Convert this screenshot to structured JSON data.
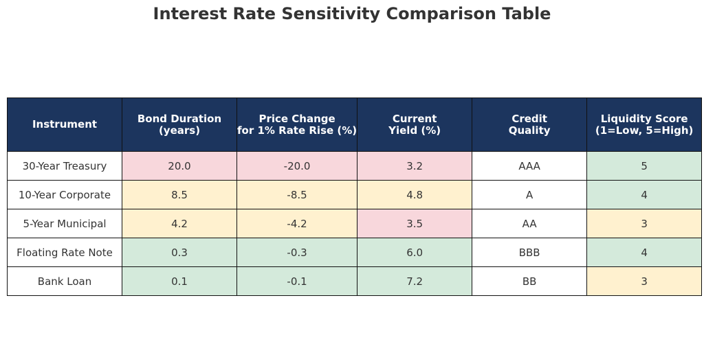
{
  "chart_data": {
    "type": "table",
    "title": "Interest Rate Sensitivity Comparison Table",
    "columns": [
      "Instrument",
      "Bond Duration\n(years)",
      "Price Change\nfor 1% Rate Rise (%)",
      "Current\nYield (%)",
      "Credit\nQuality",
      "Liquidity Score\n(1=Low, 5=High)"
    ],
    "rows": [
      [
        "30-Year Treasury",
        "20.0",
        "-20.0",
        "3.2",
        "AAA",
        "5"
      ],
      [
        "10-Year Corporate",
        "8.5",
        "-8.5",
        "4.8",
        "A",
        "4"
      ],
      [
        "5-Year Municipal",
        "4.2",
        "-4.2",
        "3.5",
        "AA",
        "3"
      ],
      [
        "Floating Rate Note",
        "0.3",
        "-0.3",
        "6.0",
        "BBB",
        "4"
      ],
      [
        "Bank Loan",
        "0.1",
        "-0.1",
        "7.2",
        "BB",
        "3"
      ]
    ],
    "cell_colors": [
      [
        "white",
        "red",
        "red",
        "red",
        "white",
        "green"
      ],
      [
        "white",
        "yellow",
        "yellow",
        "yellow",
        "white",
        "green"
      ],
      [
        "white",
        "yellow",
        "yellow",
        "red",
        "white",
        "yellow"
      ],
      [
        "white",
        "green",
        "green",
        "green",
        "white",
        "green"
      ],
      [
        "white",
        "green",
        "green",
        "green",
        "white",
        "yellow"
      ]
    ]
  },
  "colors": {
    "header_bg": "#1c355e",
    "header_text": "#ffffff",
    "red": "#f8d7dc",
    "yellow": "#fff1cf",
    "green": "#d4eadb",
    "white": "#ffffff",
    "title_text": "#333333"
  }
}
